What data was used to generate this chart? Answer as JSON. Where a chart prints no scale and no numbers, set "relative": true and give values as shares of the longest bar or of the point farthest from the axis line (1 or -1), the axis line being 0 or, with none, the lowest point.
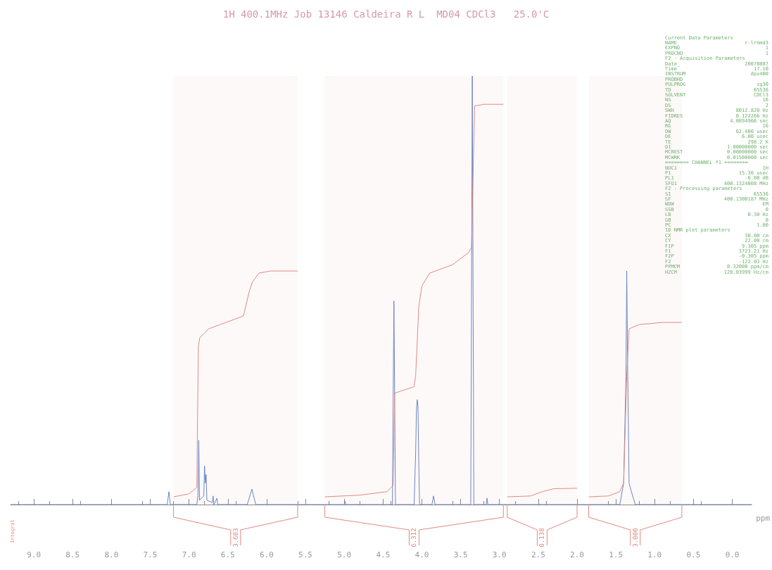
{
  "chart_data": {
    "type": "line",
    "title": "1H 400.1MHz Job 13146 Caldeira R L  MD04 CDCl3   25.0'C",
    "xlabel": "ppm",
    "relative": true,
    "xlim": [
      9.3,
      -0.25
    ],
    "xticks": [
      {
        "value": 9,
        "label": "9.0"
      },
      {
        "value": 8.5,
        "label": "8.5"
      },
      {
        "value": 8,
        "label": "8.0"
      },
      {
        "value": 7.5,
        "label": "7.5"
      },
      {
        "value": 7,
        "label": "7.0"
      },
      {
        "value": 6.5,
        "label": "6.5"
      },
      {
        "value": 6,
        "label": "6.0"
      },
      {
        "value": 5.5,
        "label": "5.5"
      },
      {
        "value": 5,
        "label": "5.0"
      },
      {
        "value": 4.5,
        "label": "4.5"
      },
      {
        "value": 4,
        "label": "4.0"
      },
      {
        "value": 3.5,
        "label": "3.5"
      },
      {
        "value": 3,
        "label": "3.0"
      },
      {
        "value": 2.5,
        "label": "2.5"
      },
      {
        "value": 2,
        "label": "2.0"
      },
      {
        "value": 1.5,
        "label": "1.5"
      },
      {
        "value": 1,
        "label": "1.0"
      },
      {
        "value": 0.5,
        "label": "0.5"
      },
      {
        "value": 0,
        "label": "0.0"
      }
    ],
    "grid": false,
    "marker": "none",
    "line_style": "solid",
    "series": [
      {
        "color": "#6b86c4",
        "x": [
          9.3,
          7.28,
          7.26,
          7.24,
          6.9,
          6.885,
          6.875,
          6.865,
          6.81,
          6.8,
          6.79,
          6.78,
          6.77,
          6.7,
          6.69,
          6.68,
          6.64,
          6.63,
          6.25,
          6.19,
          6.14,
          5.0,
          4.99,
          4.98,
          4.38,
          4.36,
          4.34,
          4.1,
          4.08,
          4.07,
          4.06,
          4.05,
          4.04,
          4.03,
          3.87,
          3.85,
          3.83,
          3.37,
          3.35,
          3.33,
          3.17,
          3.16,
          3.15,
          1.45,
          1.4,
          1.37,
          1.36,
          1.35,
          1.33,
          1.3,
          1.25,
          -0.25
        ],
        "values": [
          0,
          0,
          0.03,
          0,
          0,
          0.02,
          0.15,
          0.01,
          0.02,
          0.09,
          0.05,
          0.07,
          0.01,
          0.005,
          0.02,
          0,
          0.015,
          0,
          0,
          0.036,
          0,
          0,
          0.008,
          0,
          0,
          0.475,
          0,
          0,
          0.12,
          0.22,
          0.245,
          0.23,
          0.1,
          0,
          0,
          0.02,
          0,
          0,
          1.0,
          0,
          0,
          0.015,
          0,
          0,
          0.05,
          0.3,
          0.545,
          0.35,
          0.05,
          0.03,
          0,
          0
        ]
      },
      {
        "color": "#e08a80",
        "x": [
          7.2,
          7.0,
          6.9,
          6.88,
          6.86,
          6.8,
          6.75,
          6.6,
          6.3,
          6.22,
          6.18,
          6.1,
          5.95,
          5.6
        ],
        "values": [
          0.018,
          0.025,
          0.04,
          0.37,
          0.39,
          0.4,
          0.41,
          0.42,
          0.44,
          0.5,
          0.52,
          0.54,
          0.545,
          0.545
        ]
      },
      {
        "color": "#e08a80",
        "x": [
          5.25,
          4.8,
          4.45,
          4.37,
          4.35,
          4.1,
          4.08,
          4.04,
          4.0,
          3.9,
          3.6,
          3.4,
          3.36,
          3.32,
          3.2,
          2.95
        ],
        "values": [
          0.018,
          0.022,
          0.03,
          0.045,
          0.26,
          0.275,
          0.3,
          0.46,
          0.51,
          0.54,
          0.56,
          0.588,
          0.6,
          0.93,
          0.934,
          0.934
        ]
      },
      {
        "color": "#e08a80",
        "x": [
          2.9,
          2.6,
          2.45,
          2.3,
          2.0
        ],
        "values": [
          0.018,
          0.02,
          0.03,
          0.037,
          0.038
        ]
      },
      {
        "color": "#e08a80",
        "x": [
          1.85,
          1.6,
          1.45,
          1.4,
          1.36,
          1.33,
          1.2,
          0.9,
          0.65
        ],
        "values": [
          0.018,
          0.02,
          0.03,
          0.05,
          0.3,
          0.41,
          0.42,
          0.425,
          0.425
        ]
      }
    ],
    "bands": [
      {
        "axis": "x",
        "from": 7.2,
        "to": 5.6,
        "label": "3.603",
        "color": "#e08a80"
      },
      {
        "axis": "x",
        "from": 5.25,
        "to": 2.95,
        "label": "6.312",
        "color": "#e08a80"
      },
      {
        "axis": "x",
        "from": 2.9,
        "to": 2.0,
        "label": "0.138",
        "color": "#e08a80"
      },
      {
        "axis": "x",
        "from": 1.85,
        "to": 0.65,
        "label": "3.000",
        "color": "#e08a80"
      }
    ],
    "annotations": [
      "Integral",
      "Current Data Parameters",
      "NAME  r-lrnmd3",
      "EXPNO  1",
      "PROCNO  1",
      "F2 - Acquisition Parameters",
      "Date_  20070807",
      "Time  17.10",
      "INSTRUM  dpx400",
      "PROBHD",
      "PULPROG  zg30",
      "TD  65536",
      "SOLVENT  CDCl3",
      "NS  16",
      "DS  2",
      "SWH  8012.820 Hz",
      "FIDRES  0.122266 Hz",
      "AQ  4.0894966 sec",
      "RG  16",
      "DW  62.400 usec",
      "DE  6.00 usec",
      "TE  298.2 K",
      "D1  1.00000000 sec",
      "MCREST  0.00000000 sec",
      "MCWRK  0.01500000 sec",
      "======== CHANNEL f1 ========",
      "NUC1  1H",
      "P1  15.30 usec",
      "PL1  -6.00 dB",
      "SFO1  400.1324008 MHz",
      "F2 - Processing parameters",
      "SI  65536",
      "SF  400.1300187 MHz",
      "WDW  EM",
      "SSB  0",
      "LB  0.30 Hz",
      "GB  0",
      "PC  1.00",
      "1D NMR plot parameters",
      "CX  30.00 cm",
      "CY  22.00 cm",
      "F1P  9.305 ppm",
      "F1  3723.21 Hz",
      "F2P  -0.305 ppm",
      "F2  -122.03 Hz",
      "PPMCM  0.32000 ppm/cm",
      "HZCM  128.03999 Hz/cm"
    ]
  }
}
